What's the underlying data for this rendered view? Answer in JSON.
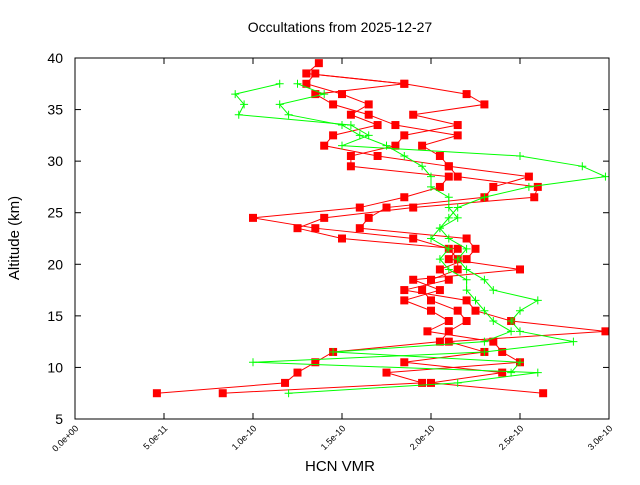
{
  "chart_data": {
    "type": "line",
    "title": "Occultations from 2025-12-27",
    "xlabel": "HCN VMR",
    "ylabel": "Altitude (km)",
    "xlim": [
      0,
      3e-10
    ],
    "ylim": [
      5,
      40
    ],
    "xticks": [
      "0.0e+00",
      "5.0e-11",
      "1.0e-10",
      "1.5e-10",
      "2.0e-10",
      "2.5e-10",
      "3.0e-10"
    ],
    "xtick_values": [
      0,
      5e-11,
      1e-10,
      1.5e-10,
      2e-10,
      2.5e-10,
      3e-10
    ],
    "yticks": [
      "5",
      "10",
      "15",
      "20",
      "25",
      "30",
      "35",
      "40"
    ],
    "ytick_values": [
      5,
      10,
      15,
      20,
      25,
      30,
      35,
      40
    ],
    "grid": false,
    "series": [
      {
        "color": "#ff0000",
        "marker": "square",
        "profiles": [
          [
            [
              4.6e-11,
              7.5
            ],
            [
              1.18e-10,
              8.5
            ],
            [
              1.25e-10,
              9.5
            ],
            [
              1.35e-10,
              10.5
            ],
            [
              1.45e-10,
              11.5
            ],
            [
              2.05e-10,
              12.5
            ],
            [
              2.1e-10,
              13.5
            ],
            [
              2.2e-10,
              14.5
            ],
            [
              2.15e-10,
              15.5
            ],
            [
              2e-10,
              16.5
            ],
            [
              1.95e-10,
              17.5
            ],
            [
              2e-10,
              18.5
            ],
            [
              2.15e-10,
              19.5
            ],
            [
              2.15e-10,
              20.5
            ],
            [
              2.1e-10,
              21.5
            ],
            [
              1.9e-10,
              22.5
            ],
            [
              1.35e-10,
              23.5
            ],
            [
              1e-10,
              24.5
            ],
            [
              1.6e-10,
              25.5
            ],
            [
              1.85e-10,
              26.5
            ],
            [
              2.05e-10,
              27.5
            ],
            [
              2.1e-10,
              28.5
            ],
            [
              1.55e-10,
              29.5
            ],
            [
              1.55e-10,
              30.5
            ],
            [
              1.8e-10,
              31.5
            ],
            [
              1.85e-10,
              32.5
            ],
            [
              2.15e-10,
              33.5
            ],
            [
              1.9e-10,
              34.5
            ],
            [
              2.3e-10,
              35.5
            ],
            [
              2.2e-10,
              36.5
            ],
            [
              1.85e-10,
              37.5
            ],
            [
              1.3e-10,
              38.5
            ],
            [
              1.37e-10,
              39.5
            ]
          ],
          [
            [
              8.3e-11,
              7.5
            ],
            [
              1.95e-10,
              8.5
            ],
            [
              1.75e-10,
              9.5
            ],
            [
              2.5e-10,
              10.5
            ],
            [
              2.4e-10,
              11.5
            ],
            [
              2.35e-10,
              12.5
            ],
            [
              1.98e-10,
              13.5
            ],
            [
              2.1e-10,
              14.5
            ],
            [
              2e-10,
              15.5
            ],
            [
              1.85e-10,
              16.5
            ],
            [
              2.05e-10,
              17.5
            ],
            [
              1.9e-10,
              18.5
            ],
            [
              2.5e-10,
              19.5
            ],
            [
              2.1e-10,
              20.5
            ],
            [
              2.15e-10,
              21.5
            ],
            [
              1.5e-10,
              22.5
            ],
            [
              1.25e-10,
              23.5
            ],
            [
              1.4e-10,
              24.5
            ],
            [
              1.9e-10,
              25.5
            ],
            [
              2.58e-10,
              26.5
            ],
            [
              2.6e-10,
              27.5
            ],
            [
              2.15e-10,
              28.5
            ],
            [
              2.1e-10,
              29.5
            ],
            [
              1.7e-10,
              30.5
            ],
            [
              1.4e-10,
              31.5
            ],
            [
              1.45e-10,
              32.5
            ],
            [
              1.7e-10,
              33.5
            ],
            [
              1.55e-10,
              34.5
            ],
            [
              1.65e-10,
              35.5
            ],
            [
              1.5e-10,
              36.5
            ],
            [
              1.3e-10,
              37.5
            ],
            [
              1.35e-10,
              38.5
            ]
          ],
          [
            [
              2.63e-10,
              7.5
            ],
            [
              2e-10,
              8.5
            ],
            [
              2.4e-10,
              9.5
            ],
            [
              1.85e-10,
              10.5
            ],
            [
              2.3e-10,
              11.5
            ],
            [
              2.1e-10,
              12.5
            ],
            [
              2.98e-10,
              13.5
            ],
            [
              2.45e-10,
              14.5
            ],
            [
              2.25e-10,
              15.5
            ],
            [
              2.2e-10,
              16.5
            ],
            [
              1.85e-10,
              17.5
            ],
            [
              2.1e-10,
              18.5
            ],
            [
              2.05e-10,
              19.5
            ],
            [
              2.2e-10,
              20.5
            ],
            [
              2.25e-10,
              21.5
            ],
            [
              2.2e-10,
              22.5
            ],
            [
              1.6e-10,
              23.5
            ],
            [
              1.65e-10,
              24.5
            ],
            [
              1.75e-10,
              25.5
            ],
            [
              2.3e-10,
              26.5
            ],
            [
              2.35e-10,
              27.5
            ],
            [
              2.55e-10,
              28.5
            ],
            [
              2.1e-10,
              29.5
            ],
            [
              2.05e-10,
              30.5
            ],
            [
              1.95e-10,
              31.5
            ],
            [
              2.15e-10,
              32.5
            ],
            [
              1.8e-10,
              33.5
            ],
            [
              1.65e-10,
              34.5
            ],
            [
              1.45e-10,
              35.5
            ],
            [
              1.35e-10,
              36.5
            ],
            [
              1.85e-10,
              37.5
            ],
            [
              1.3e-10,
              38.5
            ]
          ]
        ]
      },
      {
        "color": "#00ff00",
        "marker": "plus",
        "profiles": [
          [
            [
              1.2e-10,
              7.5
            ],
            [
              2.15e-10,
              8.5
            ],
            [
              2.6e-10,
              9.5
            ],
            [
              1e-10,
              10.5
            ],
            [
              2.3e-10,
              11.5
            ],
            [
              2.8e-10,
              12.5
            ],
            [
              2.5e-10,
              13.5
            ],
            [
              2.45e-10,
              14.5
            ],
            [
              2.5e-10,
              15.5
            ],
            [
              2.6e-10,
              16.5
            ],
            [
              2.35e-10,
              17.5
            ],
            [
              2.3e-10,
              18.5
            ],
            [
              2.2e-10,
              19.5
            ],
            [
              2.15e-10,
              20.5
            ],
            [
              2.2e-10,
              21.5
            ],
            [
              2.1e-10,
              22.5
            ],
            [
              2.05e-10,
              23.5
            ],
            [
              2.1e-10,
              24.5
            ],
            [
              2.15e-10,
              25.5
            ],
            [
              2.3e-10,
              26.5
            ],
            [
              2.55e-10,
              27.5
            ],
            [
              2.98e-10,
              28.5
            ],
            [
              2.85e-10,
              29.5
            ],
            [
              2.5e-10,
              30.5
            ],
            [
              1.5e-10,
              31.5
            ],
            [
              1.65e-10,
              32.5
            ],
            [
              1.55e-10,
              33.5
            ],
            [
              9.2e-11,
              34.5
            ],
            [
              9.5e-11,
              35.5
            ],
            [
              9e-11,
              36.5
            ],
            [
              1.15e-10,
              37.5
            ]
          ],
          [
            [
              2.45e-10,
              9.5
            ],
            [
              2.5e-10,
              10.5
            ],
            [
              1.45e-10,
              11.5
            ],
            [
              2.3e-10,
              12.5
            ],
            [
              2.45e-10,
              13.5
            ],
            [
              2.35e-10,
              14.5
            ],
            [
              2.3e-10,
              15.5
            ],
            [
              2.25e-10,
              16.5
            ],
            [
              2.2e-10,
              17.5
            ],
            [
              2.2e-10,
              18.5
            ],
            [
              2.1e-10,
              19.5
            ],
            [
              2.05e-10,
              20.5
            ],
            [
              2.1e-10,
              21.5
            ],
            [
              2e-10,
              22.5
            ],
            [
              2.05e-10,
              23.5
            ],
            [
              2.15e-10,
              24.5
            ],
            [
              2.1e-10,
              25.5
            ],
            [
              2.1e-10,
              26.5
            ],
            [
              2e-10,
              27.5
            ],
            [
              2e-10,
              28.5
            ],
            [
              1.95e-10,
              29.5
            ],
            [
              1.85e-10,
              30.5
            ],
            [
              1.75e-10,
              31.5
            ],
            [
              1.6e-10,
              32.5
            ],
            [
              1.5e-10,
              33.5
            ],
            [
              1.2e-10,
              34.5
            ],
            [
              1.15e-10,
              35.5
            ],
            [
              1.4e-10,
              36.5
            ],
            [
              1.25e-10,
              37.5
            ]
          ]
        ]
      }
    ]
  }
}
